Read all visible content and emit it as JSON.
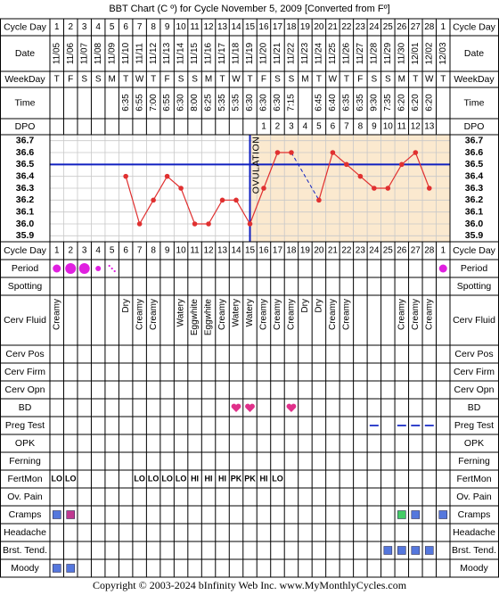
{
  "title": "BBT Chart (C º) for Cycle November 5, 2009  [Converted from Fº]",
  "footer": "Copyright © 2003-2024 bInfinity Web Inc.     www.MyMonthlyCycles.com",
  "row_labels": {
    "cycle_day": "Cycle Day",
    "date": "Date",
    "weekday": "WeekDay",
    "time": "Time",
    "dpo": "DPO"
  },
  "cycle_days": [
    1,
    2,
    3,
    4,
    5,
    6,
    7,
    8,
    9,
    10,
    11,
    12,
    13,
    14,
    15,
    16,
    17,
    18,
    19,
    20,
    21,
    22,
    23,
    24,
    25,
    26,
    27,
    28,
    1
  ],
  "dates": [
    "11/05",
    "11/06",
    "11/07",
    "11/08",
    "11/09",
    "11/10",
    "11/11",
    "11/12",
    "11/13",
    "11/14",
    "11/15",
    "11/16",
    "11/17",
    "11/18",
    "11/19",
    "11/20",
    "11/21",
    "11/22",
    "11/23",
    "11/24",
    "11/25",
    "11/26",
    "11/27",
    "11/28",
    "11/29",
    "11/30",
    "12/01",
    "12/02",
    "12/03"
  ],
  "weekdays": [
    "T",
    "F",
    "S",
    "S",
    "M",
    "T",
    "W",
    "T",
    "F",
    "S",
    "S",
    "M",
    "T",
    "W",
    "T",
    "F",
    "S",
    "S",
    "M",
    "T",
    "W",
    "T",
    "F",
    "S",
    "S",
    "M",
    "T",
    "W",
    "T"
  ],
  "times": [
    null,
    null,
    null,
    null,
    null,
    "6:35",
    "6:55",
    "7:00",
    "6:55",
    "6:30",
    "8:00",
    "6:25",
    "5:35",
    "5:35",
    "6:30",
    "6:30",
    "6:30",
    "7:15",
    null,
    "6:45",
    "6:40",
    "6:35",
    "6:35",
    "9:30",
    "7:35",
    "6:20",
    "6:20",
    "6:20",
    null
  ],
  "dpo": [
    null,
    null,
    null,
    null,
    null,
    null,
    null,
    null,
    null,
    null,
    null,
    null,
    null,
    null,
    null,
    1,
    2,
    3,
    4,
    5,
    6,
    7,
    8,
    9,
    10,
    11,
    12,
    13,
    null
  ],
  "chart_data": {
    "type": "line",
    "x": [
      1,
      2,
      3,
      4,
      5,
      6,
      7,
      8,
      9,
      10,
      11,
      12,
      13,
      14,
      15,
      16,
      17,
      18,
      19,
      20,
      21,
      22,
      23,
      24,
      25,
      26,
      27,
      28,
      29
    ],
    "series": [
      {
        "color": "#e03030",
        "values": [
          null,
          null,
          null,
          null,
          null,
          36.4,
          36.0,
          36.2,
          36.4,
          36.3,
          36.0,
          36.0,
          36.2,
          36.2,
          36.0,
          36.3,
          36.6,
          36.6,
          null,
          36.2,
          36.6,
          36.5,
          36.4,
          36.3,
          36.3,
          36.5,
          36.6,
          36.3,
          null
        ]
      }
    ],
    "ylim": [
      35.85,
      36.75
    ],
    "yticks": [
      36.7,
      36.6,
      36.5,
      36.4,
      36.3,
      36.2,
      36.1,
      {
        "value": 36,
        "label": "36.0"
      },
      35.9
    ],
    "grid": true,
    "coverline": 36.5,
    "coverline_color": "#1020c0",
    "ovulation_day": 15,
    "ovulation_label": "OVULATION",
    "luteal_shade": "#fbe9cf"
  },
  "rows": [
    {
      "label": "Period",
      "kind": "period",
      "color": "#e020e0",
      "values": [
        3,
        4,
        4,
        2,
        1,
        null,
        null,
        null,
        null,
        null,
        null,
        null,
        null,
        null,
        null,
        null,
        null,
        null,
        null,
        null,
        null,
        null,
        null,
        null,
        null,
        null,
        null,
        null,
        3
      ]
    },
    {
      "label": "Spotting"
    },
    {
      "label": "Cerv Fluid",
      "kind": "vtext",
      "values": [
        "Creamy",
        null,
        null,
        null,
        null,
        "Dry",
        "Creamy",
        "Creamy",
        null,
        "Watery",
        "Eggwhite",
        "Eggwhite",
        "Creamy",
        "Watery",
        "Watery",
        "Creamy",
        "Creamy",
        "Creamy",
        "Dry",
        "Dry",
        "Creamy",
        "Creamy",
        null,
        null,
        null,
        "Creamy",
        "Creamy",
        "Creamy",
        null
      ]
    },
    {
      "label": "Cerv Pos"
    },
    {
      "label": "Cerv Firm"
    },
    {
      "label": "Cerv Opn"
    },
    {
      "label": "BD",
      "kind": "heart",
      "color": "#e0308a",
      "values": [
        null,
        null,
        null,
        null,
        null,
        null,
        null,
        null,
        null,
        null,
        null,
        null,
        null,
        true,
        true,
        null,
        null,
        true,
        null,
        null,
        null,
        null,
        null,
        null,
        null,
        null,
        null,
        null,
        null
      ]
    },
    {
      "label": "Preg Test",
      "kind": "dash",
      "color": "#3344cc",
      "values": [
        null,
        null,
        null,
        null,
        null,
        null,
        null,
        null,
        null,
        null,
        null,
        null,
        null,
        null,
        null,
        null,
        null,
        null,
        null,
        null,
        null,
        null,
        null,
        true,
        null,
        true,
        true,
        true,
        null
      ]
    },
    {
      "label": "OPK"
    },
    {
      "label": "Ferning"
    },
    {
      "label": "FertMon",
      "kind": "text",
      "color": "#1e8a1e",
      "values": [
        "LO",
        "LO",
        null,
        null,
        null,
        null,
        "LO",
        "LO",
        "LO",
        "LO",
        "HI",
        "HI",
        "HI",
        "PK",
        "PK",
        "HI",
        "LO",
        null,
        null,
        null,
        null,
        null,
        null,
        null,
        null,
        null,
        null,
        null,
        null
      ]
    },
    {
      "label": "Ov. Pain"
    },
    {
      "label": "Cramps",
      "kind": "square",
      "values": [
        "#5577dd",
        "#c03890",
        null,
        null,
        null,
        null,
        null,
        null,
        null,
        null,
        null,
        null,
        null,
        null,
        null,
        null,
        null,
        null,
        null,
        null,
        null,
        null,
        null,
        null,
        null,
        "#44cc66",
        "#5577dd",
        null,
        "#5577dd"
      ]
    },
    {
      "label": "Headache"
    },
    {
      "label": "Brst. Tend.",
      "kind": "square",
      "values": [
        null,
        null,
        null,
        null,
        null,
        null,
        null,
        null,
        null,
        null,
        null,
        null,
        null,
        null,
        null,
        null,
        null,
        null,
        null,
        null,
        null,
        null,
        null,
        null,
        "#5577dd",
        "#5577dd",
        "#5577dd",
        "#5577dd",
        null
      ]
    },
    {
      "label": "Moody",
      "kind": "square",
      "values": [
        "#5577dd",
        "#5577dd",
        null,
        null,
        null,
        null,
        null,
        null,
        null,
        null,
        null,
        null,
        null,
        null,
        null,
        null,
        null,
        null,
        null,
        null,
        null,
        null,
        null,
        null,
        null,
        null,
        null,
        null,
        null
      ]
    }
  ]
}
